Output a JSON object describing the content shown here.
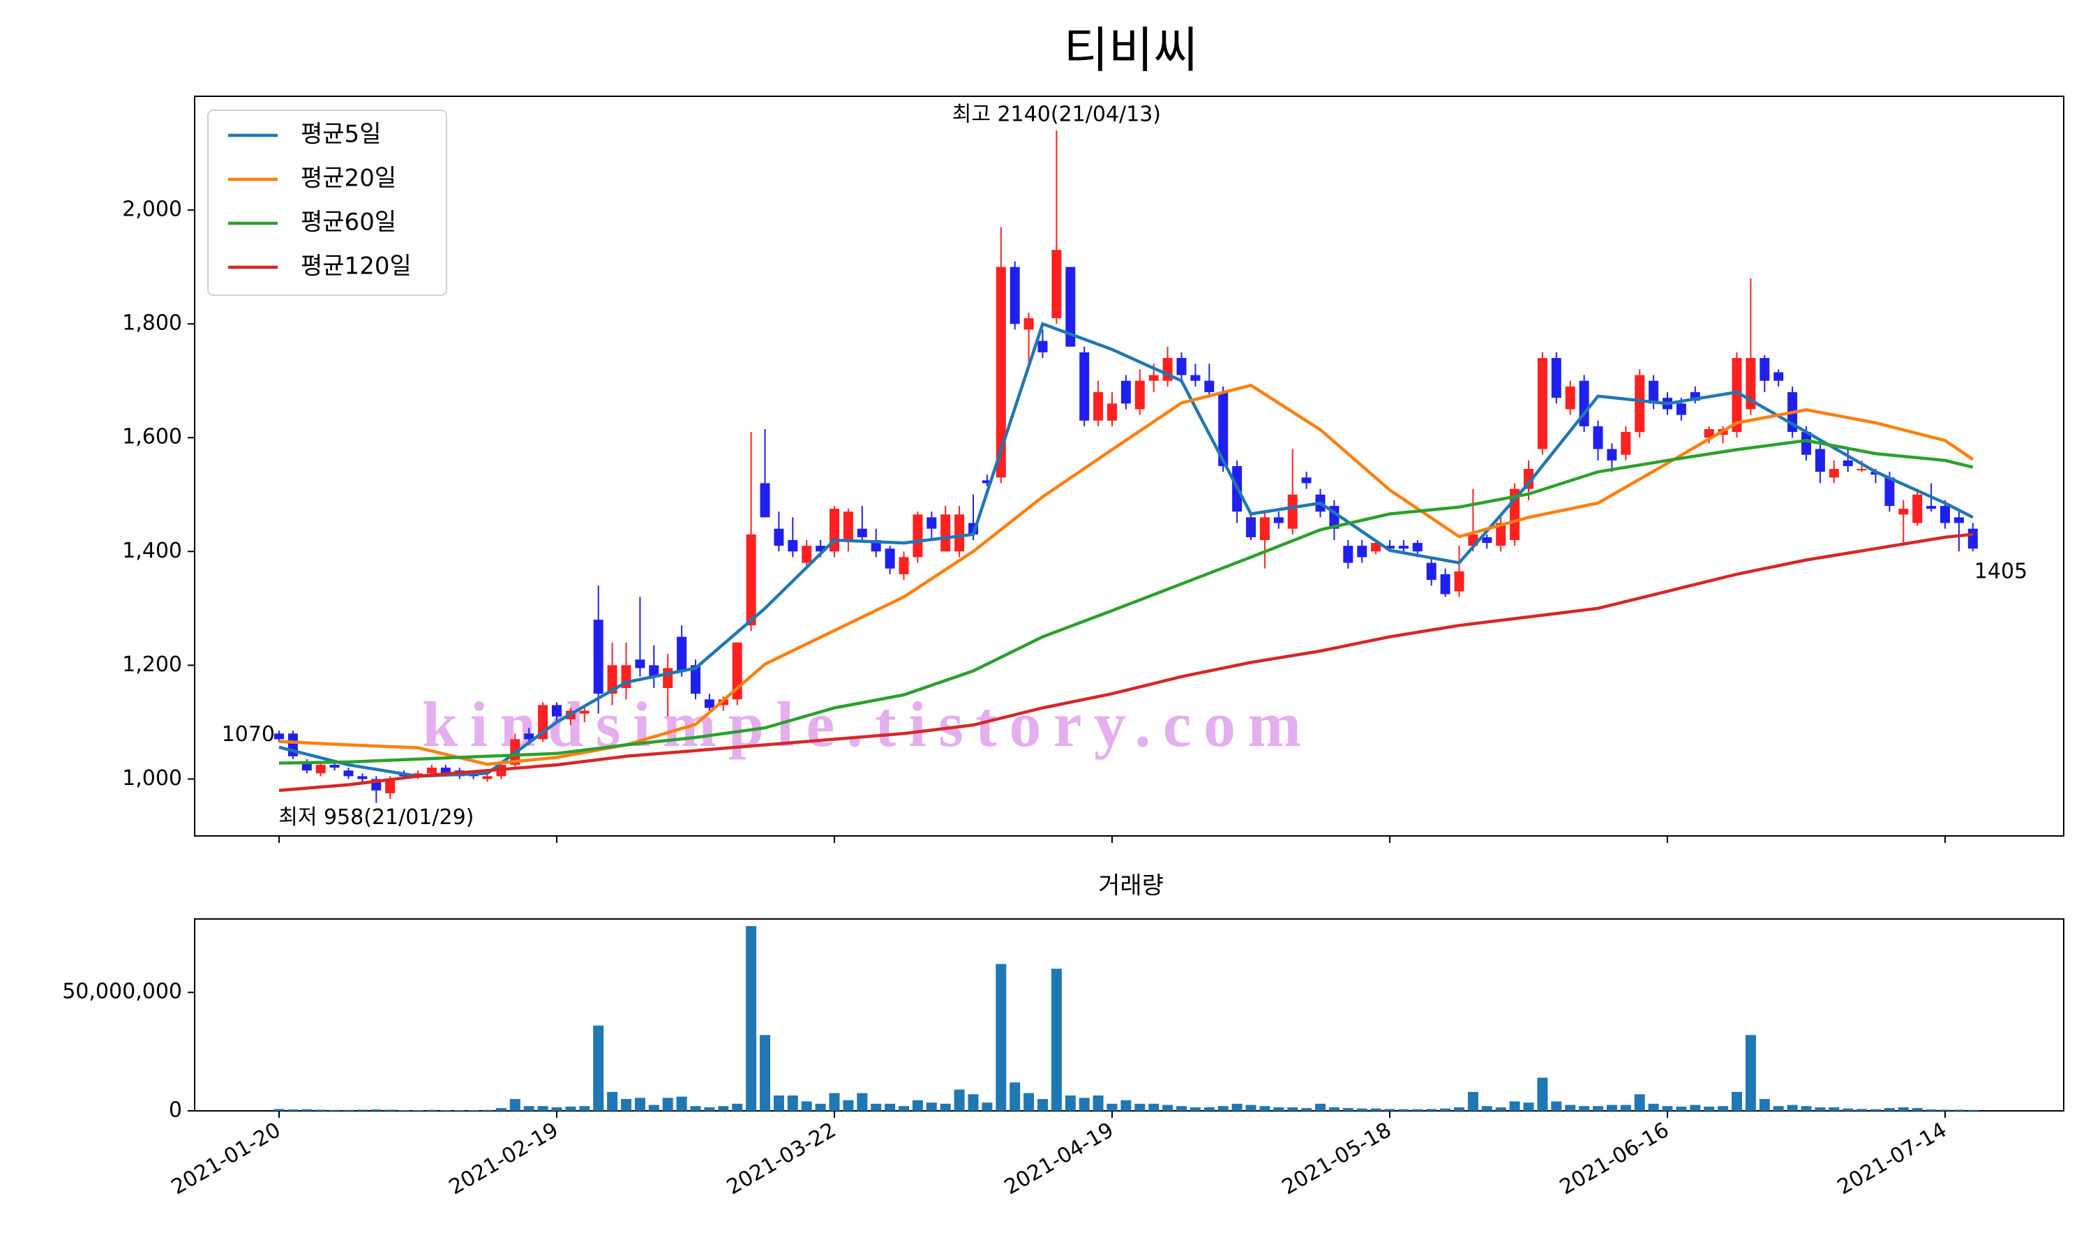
{
  "chart_data": [
    {
      "type": "candlestick",
      "title": "티비씨",
      "watermark": "kindsimple.tistory.com",
      "up_color": "#ff2020",
      "down_color": "#2020ee",
      "legend": "upper left",
      "x": [
        "2021-01-20",
        "2021-01-21",
        "2021-01-22",
        "2021-01-25",
        "2021-01-26",
        "2021-01-27",
        "2021-01-28",
        "2021-01-29",
        "2021-02-01",
        "2021-02-02",
        "2021-02-03",
        "2021-02-04",
        "2021-02-05",
        "2021-02-08",
        "2021-02-09",
        "2021-02-10",
        "2021-02-15",
        "2021-02-16",
        "2021-02-17",
        "2021-02-18",
        "2021-02-19",
        "2021-02-22",
        "2021-02-23",
        "2021-02-24",
        "2021-02-25",
        "2021-02-26",
        "2021-03-02",
        "2021-03-03",
        "2021-03-04",
        "2021-03-05",
        "2021-03-08",
        "2021-03-09",
        "2021-03-10",
        "2021-03-11",
        "2021-03-12",
        "2021-03-15",
        "2021-03-16",
        "2021-03-17",
        "2021-03-18",
        "2021-03-19",
        "2021-03-22",
        "2021-03-23",
        "2021-03-24",
        "2021-03-25",
        "2021-03-26",
        "2021-03-29",
        "2021-03-30",
        "2021-03-31",
        "2021-04-01",
        "2021-04-02",
        "2021-04-05",
        "2021-04-06",
        "2021-04-07",
        "2021-04-08",
        "2021-04-09",
        "2021-04-12",
        "2021-04-13",
        "2021-04-14",
        "2021-04-15",
        "2021-04-16",
        "2021-04-19",
        "2021-04-20",
        "2021-04-21",
        "2021-04-22",
        "2021-04-23",
        "2021-04-26",
        "2021-04-27",
        "2021-04-28",
        "2021-04-29",
        "2021-04-30",
        "2021-05-03",
        "2021-05-04",
        "2021-05-06",
        "2021-05-07",
        "2021-05-10",
        "2021-05-11",
        "2021-05-12",
        "2021-05-13",
        "2021-05-14",
        "2021-05-17",
        "2021-05-18",
        "2021-05-20",
        "2021-05-21",
        "2021-05-24",
        "2021-05-25",
        "2021-05-26",
        "2021-05-27",
        "2021-05-28",
        "2021-05-31",
        "2021-06-01",
        "2021-06-02",
        "2021-06-03",
        "2021-06-04",
        "2021-06-07",
        "2021-06-08",
        "2021-06-09",
        "2021-06-10",
        "2021-06-11",
        "2021-06-14",
        "2021-06-15",
        "2021-06-16",
        "2021-06-17",
        "2021-06-18",
        "2021-06-21",
        "2021-06-22",
        "2021-06-23",
        "2021-06-24",
        "2021-06-25",
        "2021-06-28",
        "2021-06-29",
        "2021-06-30",
        "2021-07-01",
        "2021-07-02",
        "2021-07-05",
        "2021-07-06",
        "2021-07-07",
        "2021-07-08",
        "2021-07-09",
        "2021-07-12",
        "2021-07-13",
        "2021-07-14",
        "2021-07-15",
        "2021-07-16"
      ],
      "open": [
        1080,
        1080,
        1030,
        1010,
        1025,
        1015,
        1005,
        1000,
        975,
        1010,
        1005,
        1010,
        1020,
        1015,
        1010,
        1000,
        1005,
        1025,
        1080,
        1070,
        1130,
        1105,
        1115,
        1280,
        1150,
        1160,
        1210,
        1200,
        1160,
        1250,
        1200,
        1140,
        1130,
        1140,
        1270,
        1520,
        1440,
        1420,
        1380,
        1410,
        1400,
        1420,
        1440,
        1420,
        1405,
        1360,
        1390,
        1460,
        1400,
        1400,
        1450,
        1525,
        1530,
        1900,
        1790,
        1770,
        1810,
        1900,
        1750,
        1630,
        1630,
        1700,
        1650,
        1700,
        1700,
        1740,
        1710,
        1700,
        1680,
        1550,
        1460,
        1420,
        1460,
        1440,
        1530,
        1500,
        1480,
        1410,
        1410,
        1400,
        1410,
        1410,
        1415,
        1380,
        1360,
        1330,
        1410,
        1425,
        1410,
        1420,
        1510,
        1580,
        1740,
        1650,
        1700,
        1620,
        1580,
        1570,
        1610,
        1700,
        1670,
        1660,
        1680,
        1600,
        1605,
        1610,
        1650,
        1740,
        1715,
        1680,
        1610,
        1580,
        1530,
        1560,
        1545,
        1540,
        1530,
        1465,
        1450,
        1480,
        1480,
        1460,
        1440
      ],
      "high": [
        1085,
        1085,
        1035,
        1030,
        1030,
        1020,
        1010,
        1005,
        1005,
        1015,
        1015,
        1025,
        1025,
        1020,
        1015,
        1010,
        1030,
        1080,
        1090,
        1135,
        1135,
        1125,
        1130,
        1340,
        1240,
        1240,
        1320,
        1235,
        1220,
        1270,
        1210,
        1150,
        1145,
        1240,
        1610,
        1615,
        1470,
        1460,
        1420,
        1420,
        1480,
        1475,
        1480,
        1440,
        1410,
        1400,
        1470,
        1470,
        1480,
        1480,
        1500,
        1535,
        1970,
        1910,
        1820,
        1790,
        2140,
        1900,
        1760,
        1700,
        1680,
        1710,
        1720,
        1730,
        1760,
        1750,
        1730,
        1730,
        1690,
        1560,
        1470,
        1470,
        1470,
        1580,
        1540,
        1510,
        1490,
        1420,
        1420,
        1420,
        1420,
        1420,
        1420,
        1390,
        1370,
        1410,
        1510,
        1430,
        1460,
        1520,
        1560,
        1750,
        1750,
        1700,
        1710,
        1630,
        1590,
        1620,
        1720,
        1710,
        1680,
        1670,
        1690,
        1620,
        1620,
        1750,
        1880,
        1745,
        1720,
        1690,
        1620,
        1590,
        1560,
        1580,
        1560,
        1545,
        1540,
        1490,
        1510,
        1520,
        1490,
        1470,
        1450
      ],
      "low": [
        1065,
        1035,
        1010,
        1005,
        1015,
        1000,
        995,
        958,
        965,
        1000,
        1000,
        1005,
        1005,
        1000,
        1000,
        995,
        1000,
        1020,
        1060,
        1065,
        1100,
        1095,
        1100,
        1115,
        1130,
        1140,
        1180,
        1160,
        1110,
        1180,
        1140,
        1120,
        1120,
        1130,
        1260,
        1460,
        1400,
        1390,
        1370,
        1390,
        1390,
        1400,
        1420,
        1390,
        1360,
        1350,
        1380,
        1420,
        1400,
        1390,
        1420,
        1515,
        1520,
        1790,
        1730,
        1740,
        1800,
        1760,
        1620,
        1620,
        1620,
        1650,
        1640,
        1680,
        1690,
        1700,
        1690,
        1670,
        1540,
        1450,
        1420,
        1370,
        1440,
        1430,
        1510,
        1460,
        1420,
        1370,
        1380,
        1395,
        1400,
        1400,
        1390,
        1340,
        1320,
        1320,
        1400,
        1405,
        1400,
        1410,
        1490,
        1570,
        1660,
        1640,
        1610,
        1560,
        1540,
        1560,
        1600,
        1650,
        1640,
        1630,
        1660,
        1590,
        1590,
        1600,
        1640,
        1680,
        1690,
        1600,
        1560,
        1520,
        1520,
        1540,
        1540,
        1520,
        1470,
        1410,
        1445,
        1470,
        1440,
        1400,
        1400
      ],
      "close": [
        1070,
        1040,
        1015,
        1025,
        1020,
        1005,
        1000,
        980,
        1000,
        1005,
        1010,
        1020,
        1010,
        1005,
        1005,
        1005,
        1025,
        1070,
        1070,
        1130,
        1110,
        1120,
        1120,
        1150,
        1200,
        1200,
        1195,
        1180,
        1195,
        1190,
        1150,
        1125,
        1140,
        1240,
        1430,
        1460,
        1410,
        1400,
        1410,
        1400,
        1475,
        1470,
        1425,
        1400,
        1370,
        1390,
        1465,
        1440,
        1465,
        1465,
        1430,
        1520,
        1900,
        1800,
        1810,
        1750,
        1930,
        1760,
        1630,
        1680,
        1660,
        1660,
        1700,
        1710,
        1740,
        1710,
        1700,
        1680,
        1550,
        1470,
        1425,
        1460,
        1450,
        1500,
        1520,
        1470,
        1440,
        1380,
        1390,
        1415,
        1405,
        1405,
        1400,
        1350,
        1325,
        1365,
        1430,
        1415,
        1450,
        1510,
        1545,
        1740,
        1670,
        1690,
        1620,
        1580,
        1560,
        1610,
        1710,
        1660,
        1650,
        1640,
        1665,
        1615,
        1615,
        1740,
        1740,
        1700,
        1700,
        1610,
        1570,
        1540,
        1545,
        1550,
        1545,
        1535,
        1480,
        1475,
        1500,
        1475,
        1450,
        1450,
        1405
      ],
      "ma_x": [
        "2021-01-20",
        "2021-01-27",
        "2021-02-03",
        "2021-02-10",
        "2021-02-19",
        "2021-02-26",
        "2021-03-08",
        "2021-03-15",
        "2021-03-22",
        "2021-03-29",
        "2021-04-05",
        "2021-04-12",
        "2021-04-19",
        "2021-04-26",
        "2021-05-03",
        "2021-05-11",
        "2021-05-18",
        "2021-05-26",
        "2021-06-02",
        "2021-06-09",
        "2021-06-16",
        "2021-06-23",
        "2021-06-30",
        "2021-07-07",
        "2021-07-14",
        "2021-07-16"
      ],
      "lines": [
        {
          "name": "평균5일",
          "color": "#1f77b4",
          "values": [
            1056,
            1025,
            1005,
            1010,
            1100,
            1170,
            1195,
            1300,
            1420,
            1415,
            1430,
            1800,
            1755,
            1700,
            1466,
            1485,
            1402,
            1380,
            1520,
            1673,
            1660,
            1680,
            1610,
            1540,
            1485,
            1460
          ]
        },
        {
          "name": "평균20일",
          "color": "#ff7f0e",
          "values": [
            1066,
            1060,
            1055,
            1026,
            1038,
            1060,
            1096,
            1202,
            1261,
            1320,
            1400,
            1496,
            1579,
            1661,
            1692,
            1614,
            1508,
            1426,
            1460,
            1485,
            1555,
            1626,
            1649,
            1626,
            1595,
            1562
          ]
        },
        {
          "name": "평균60일",
          "color": "#2ca02c",
          "values": [
            1028,
            1030,
            1035,
            1040,
            1045,
            1060,
            1073,
            1090,
            1125,
            1148,
            1190,
            1250,
            1296,
            1343,
            1390,
            1438,
            1466,
            1478,
            1501,
            1540,
            1560,
            1579,
            1595,
            1572,
            1560,
            1548
          ]
        },
        {
          "name": "평균120일",
          "color": "#d62728",
          "values": [
            980,
            990,
            1005,
            1015,
            1025,
            1040,
            1050,
            1060,
            1070,
            1080,
            1095,
            1125,
            1150,
            1180,
            1205,
            1225,
            1250,
            1270,
            1285,
            1300,
            1330,
            1360,
            1385,
            1405,
            1425,
            1430
          ]
        }
      ],
      "annotations": [
        {
          "text": "최고 2140(21/04/13)",
          "color": "#ff0000",
          "x": "2021-04-13",
          "y": 2140
        },
        {
          "text": "최저 958(21/01/29)",
          "color": "#0000ff",
          "x": "2021-01-29",
          "y": 958
        }
      ],
      "ylim": [
        900,
        2200
      ],
      "yticks": [
        {
          "value": 1000,
          "label": "1,000"
        },
        {
          "value": 1200,
          "label": "1,200"
        },
        {
          "value": 1400,
          "label": "1,400"
        },
        {
          "value": 1600,
          "label": "1,600"
        },
        {
          "value": 1800,
          "label": "1,800"
        },
        {
          "value": 2000,
          "label": "2,000"
        }
      ]
    },
    {
      "type": "bar",
      "title": "거래량",
      "color": "#1f77b4",
      "values": [
        800000,
        600000,
        700000,
        500000,
        400000,
        400000,
        500000,
        600000,
        500000,
        300000,
        300000,
        400000,
        300000,
        300000,
        300000,
        400000,
        1200000,
        5000000,
        2000000,
        2000000,
        1500000,
        1800000,
        2000000,
        36000000,
        8000000,
        5000000,
        5500000,
        2500000,
        5500000,
        6000000,
        2000000,
        1500000,
        2000000,
        3000000,
        78000000,
        32000000,
        6500000,
        6500000,
        4000000,
        3000000,
        7500000,
        4500000,
        7500000,
        3000000,
        3000000,
        2000000,
        4500000,
        3500000,
        3000000,
        9000000,
        7000000,
        3500000,
        62000000,
        12000000,
        7500000,
        5000000,
        60000000,
        6500000,
        5500000,
        6500000,
        3000000,
        4500000,
        3000000,
        3000000,
        2500000,
        2000000,
        1500000,
        1500000,
        2000000,
        3000000,
        2500000,
        2000000,
        1500000,
        1500000,
        1200000,
        3000000,
        1500000,
        1200000,
        1000000,
        1000000,
        800000,
        700000,
        700000,
        800000,
        1000000,
        1500000,
        8000000,
        2000000,
        1500000,
        4000000,
        3500000,
        14000000,
        4000000,
        2500000,
        2000000,
        2000000,
        2500000,
        2500000,
        7000000,
        3000000,
        2000000,
        1800000,
        2500000,
        1800000,
        2000000,
        8000000,
        32000000,
        5000000,
        2000000,
        2500000,
        2000000,
        1500000,
        1500000,
        1000000,
        800000,
        700000,
        1200000,
        1500000,
        1200000,
        600000,
        500000,
        500000,
        400000
      ],
      "ylim": [
        0,
        81000000
      ],
      "yticks": [
        0,
        {
          "value": 50000000,
          "label": "50,000,000"
        }
      ],
      "xticks": [
        "2021-01-20",
        "2021-02-19",
        "2021-03-22",
        "2021-04-19",
        "2021-05-18",
        "2021-06-16",
        "2021-07-14"
      ]
    }
  ]
}
